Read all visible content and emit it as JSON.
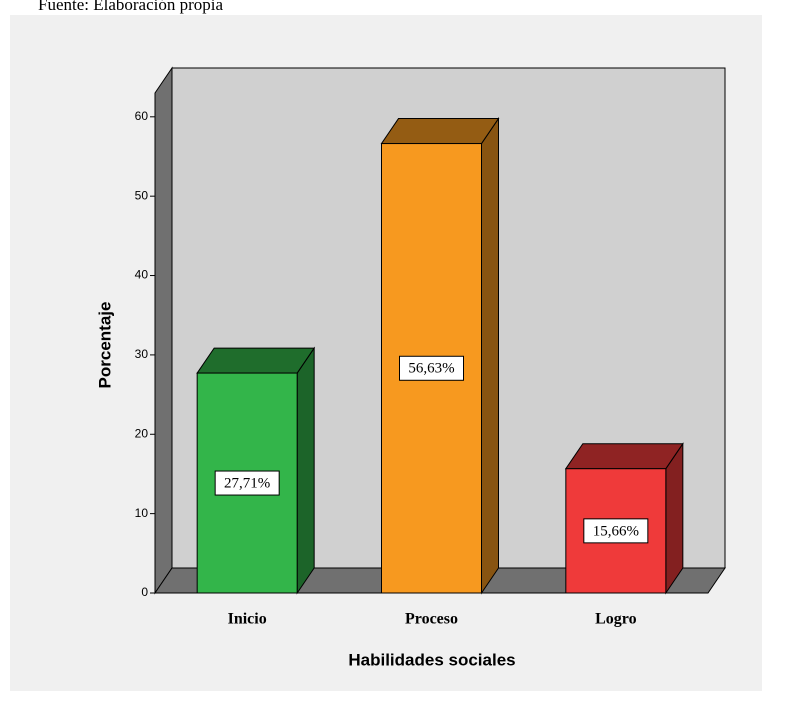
{
  "source": "Fuente: Elaboración propia",
  "chart_data": {
    "type": "bar3d",
    "categories": [
      "Inicio",
      "Proceso",
      "Logro"
    ],
    "values": [
      27.71,
      56.63,
      15.66
    ],
    "value_labels": [
      "27,71%",
      "56,63%",
      "15,66%"
    ],
    "colors": [
      "#33b54a",
      "#f7991f",
      "#ef3a3a"
    ],
    "xlabel": "Habilidades sociales",
    "ylabel": "Porcentaje",
    "ylim": [
      0,
      63
    ],
    "yticks": [
      0,
      10,
      20,
      30,
      40,
      50,
      60
    ]
  }
}
